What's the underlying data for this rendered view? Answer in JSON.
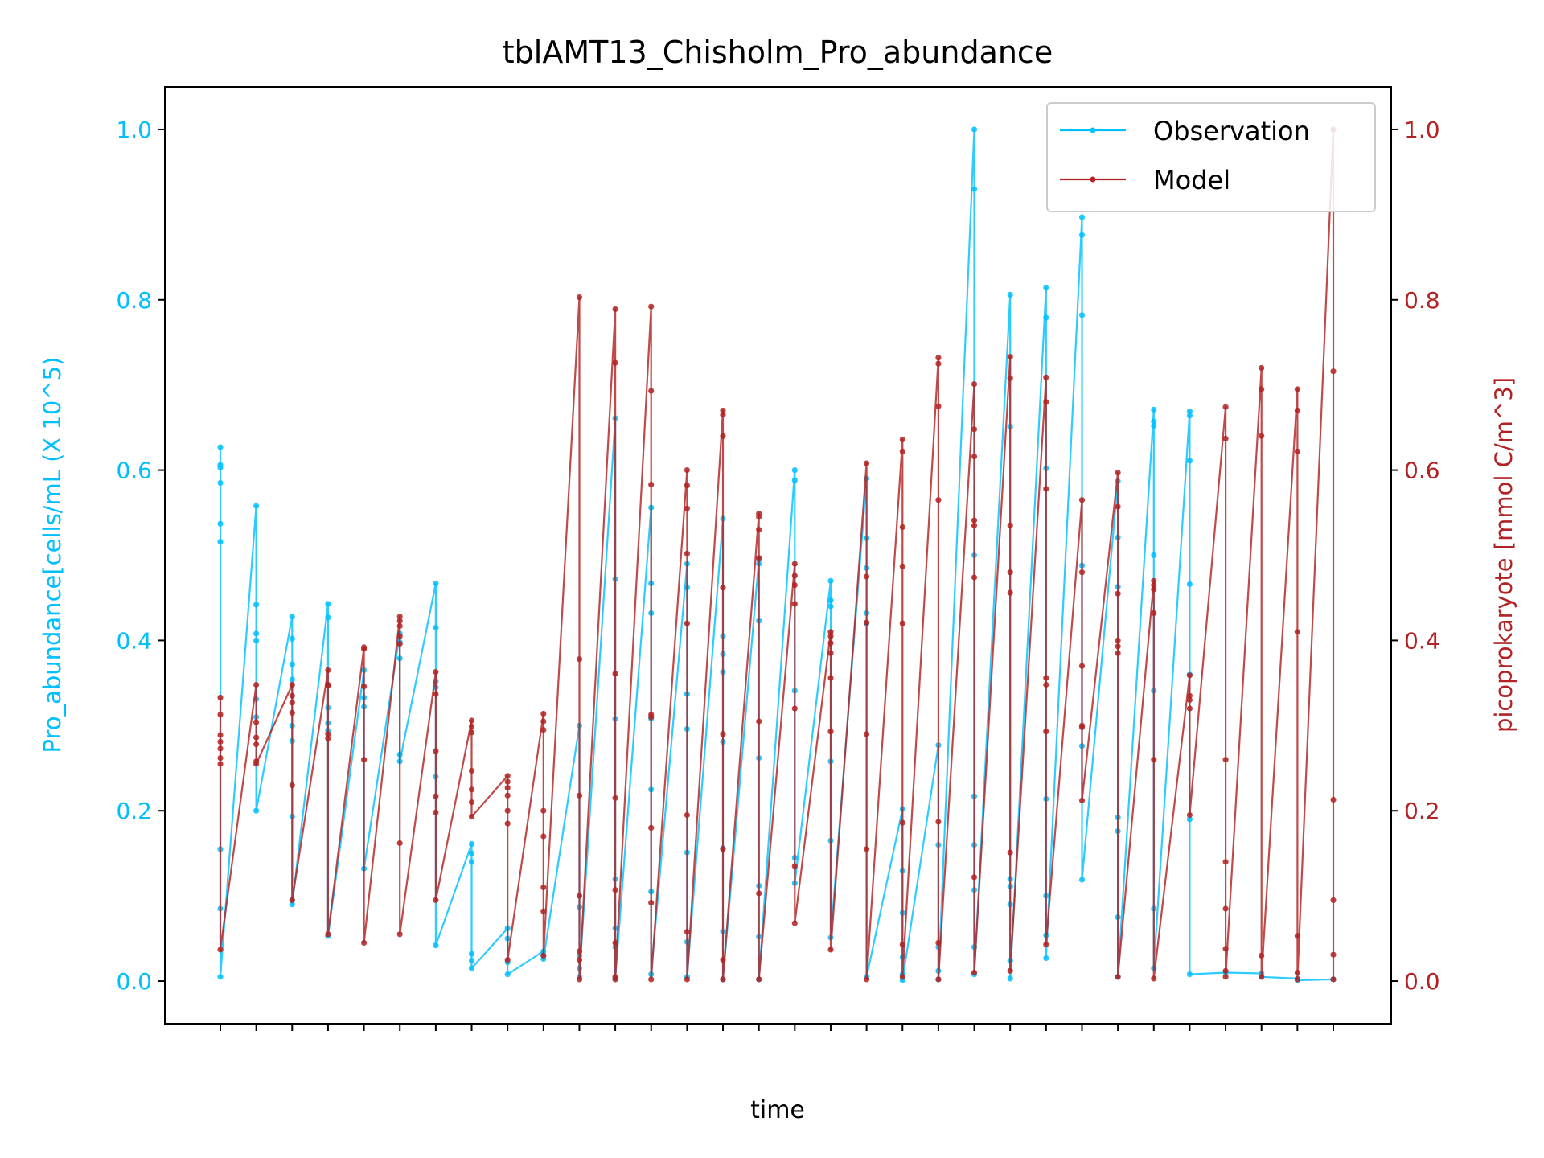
{
  "chart_data": {
    "type": "line",
    "title": "tblAMT13_Chisholm_Pro_abundance",
    "xlabel": "time",
    "ylabel_left": "Pro_abundance[cells/mL (X 10^5)",
    "ylabel_right": "picoprokaryote [mmol C/m^3]",
    "ylim_left": [
      -0.05,
      1.05
    ],
    "ylim_right": [
      -0.05,
      1.05
    ],
    "yticks_left": [
      "0.0",
      "0.2",
      "0.4",
      "0.6",
      "0.8",
      "1.0"
    ],
    "yticks_right": [
      "0.0",
      "0.2",
      "0.4",
      "0.6",
      "0.8",
      "1.0"
    ],
    "x_tick_labels_note": "32 overlapping date-time tick labels (illegible), last ends with 00:00",
    "x_count": 32,
    "legend_position": "top-right",
    "colors": {
      "observation": "#00bfff",
      "model": "#b22222"
    },
    "series": [
      {
        "name": "Observation",
        "axis": "left",
        "groups": [
          [
            0.627,
            0.606,
            0.603,
            0.585,
            0.537,
            0.516,
            0.155,
            0.085,
            0.005
          ],
          [
            0.558,
            0.442,
            0.408,
            0.4,
            0.331,
            0.31,
            0.2
          ],
          [
            0.428,
            0.402,
            0.372,
            0.354,
            0.3,
            0.282,
            0.193,
            0.095,
            0.09
          ],
          [
            0.443,
            0.427,
            0.321,
            0.303,
            0.294,
            0.053
          ],
          [
            0.365,
            0.333,
            0.322,
            0.132
          ],
          [
            0.408,
            0.398,
            0.379,
            0.266,
            0.258
          ],
          [
            0.467,
            0.415,
            0.352,
            0.345,
            0.24,
            0.042
          ],
          [
            0.161,
            0.15,
            0.14,
            0.032,
            0.024,
            0.015
          ],
          [
            0.062,
            0.05,
            0.022,
            0.008
          ],
          [
            0.035,
            0.03,
            0.026
          ],
          [
            0.3,
            0.087,
            0.03,
            0.015,
            0.005
          ],
          [
            0.661,
            0.472,
            0.308,
            0.12,
            0.062,
            0.04,
            0.003
          ],
          [
            0.556,
            0.467,
            0.432,
            0.308,
            0.225,
            0.105,
            0.008
          ],
          [
            0.49,
            0.462,
            0.337,
            0.296,
            0.151,
            0.046,
            0.005
          ],
          [
            0.543,
            0.405,
            0.384,
            0.363,
            0.281,
            0.156,
            0.058,
            0.002
          ],
          [
            0.495,
            0.49,
            0.423,
            0.262,
            0.112,
            0.052,
            0.002
          ],
          [
            0.6,
            0.588,
            0.341,
            0.145,
            0.115
          ],
          [
            0.47,
            0.447,
            0.44,
            0.258,
            0.165,
            0.051
          ],
          [
            0.59,
            0.52,
            0.485,
            0.432,
            0.42,
            0.005
          ],
          [
            0.202,
            0.13,
            0.08,
            0.028,
            0.008,
            0.001
          ],
          [
            0.277,
            0.16,
            0.04,
            0.012,
            0.002
          ],
          [
            1.0,
            0.93,
            0.5,
            0.217,
            0.16,
            0.107,
            0.04,
            0.008
          ],
          [
            0.806,
            0.651,
            0.12,
            0.111,
            0.09,
            0.024,
            0.003
          ],
          [
            0.814,
            0.779,
            0.602,
            0.214,
            0.1,
            0.054,
            0.027
          ],
          [
            0.897,
            0.876,
            0.782,
            0.488,
            0.276,
            0.119
          ],
          [
            0.587,
            0.521,
            0.463,
            0.192,
            0.176,
            0.075,
            0.005
          ],
          [
            0.671,
            0.657,
            0.652,
            0.5,
            0.341,
            0.085,
            0.015
          ],
          [
            0.669,
            0.664,
            0.611,
            0.466,
            0.36,
            0.19,
            0.008
          ],
          [
            0.01
          ],
          [
            0.009,
            0.005
          ],
          [
            0.003,
            0.001
          ],
          [
            0.002
          ]
        ]
      },
      {
        "name": "Model",
        "axis": "right",
        "groups": [
          [
            0.333,
            0.313,
            0.289,
            0.281,
            0.273,
            0.262,
            0.255,
            0.037
          ],
          [
            0.348,
            0.304,
            0.286,
            0.278,
            0.258,
            0.255
          ],
          [
            0.348,
            0.335,
            0.327,
            0.315,
            0.23,
            0.095
          ],
          [
            0.365,
            0.348,
            0.347,
            0.29,
            0.285,
            0.055
          ],
          [
            0.392,
            0.39,
            0.346,
            0.26,
            0.045
          ],
          [
            0.428,
            0.423,
            0.417,
            0.405,
            0.396,
            0.162,
            0.055
          ],
          [
            0.363,
            0.337,
            0.27,
            0.217,
            0.198,
            0.095
          ],
          [
            0.306,
            0.299,
            0.292,
            0.247,
            0.225,
            0.21,
            0.193
          ],
          [
            0.241,
            0.234,
            0.227,
            0.218,
            0.2,
            0.185,
            0.025
          ],
          [
            0.314,
            0.305,
            0.295,
            0.2,
            0.17,
            0.11,
            0.082,
            0.03
          ],
          [
            0.803,
            0.378,
            0.218,
            0.1,
            0.035,
            0.025,
            0.002
          ],
          [
            0.789,
            0.726,
            0.361,
            0.215,
            0.107,
            0.045,
            0.005,
            0.002
          ],
          [
            0.792,
            0.693,
            0.583,
            0.313,
            0.31,
            0.18,
            0.092,
            0.002
          ],
          [
            0.6,
            0.582,
            0.555,
            0.502,
            0.42,
            0.195,
            0.058,
            0.002
          ],
          [
            0.67,
            0.665,
            0.64,
            0.462,
            0.29,
            0.155,
            0.025,
            0.002
          ],
          [
            0.549,
            0.545,
            0.53,
            0.497,
            0.305,
            0.103,
            0.002
          ],
          [
            0.49,
            0.476,
            0.465,
            0.443,
            0.32,
            0.135,
            0.068
          ],
          [
            0.41,
            0.405,
            0.397,
            0.385,
            0.356,
            0.293,
            0.037
          ],
          [
            0.608,
            0.475,
            0.421,
            0.29,
            0.155,
            0.002
          ],
          [
            0.636,
            0.622,
            0.533,
            0.487,
            0.42,
            0.186,
            0.043,
            0.005
          ],
          [
            0.732,
            0.725,
            0.675,
            0.565,
            0.187,
            0.045,
            0.002
          ],
          [
            0.701,
            0.648,
            0.616,
            0.541,
            0.535,
            0.474,
            0.122,
            0.01
          ],
          [
            0.733,
            0.708,
            0.535,
            0.48,
            0.456,
            0.151,
            0.012
          ],
          [
            0.709,
            0.68,
            0.578,
            0.356,
            0.348,
            0.293,
            0.043
          ],
          [
            0.565,
            0.48,
            0.37,
            0.3,
            0.298,
            0.212
          ],
          [
            0.597,
            0.557,
            0.455,
            0.4,
            0.393,
            0.385,
            0.005
          ],
          [
            0.47,
            0.465,
            0.46,
            0.432,
            0.26,
            0.003
          ],
          [
            0.359,
            0.335,
            0.33,
            0.32,
            0.195
          ],
          [
            0.674,
            0.637,
            0.26,
            0.14,
            0.085,
            0.038,
            0.012,
            0.005
          ],
          [
            0.72,
            0.695,
            0.64,
            0.03,
            0.005
          ],
          [
            0.695,
            0.67,
            0.622,
            0.41,
            0.053,
            0.01,
            0.002
          ],
          [
            1.0,
            0.716,
            0.213,
            0.095,
            0.031,
            0.002
          ]
        ]
      }
    ]
  }
}
